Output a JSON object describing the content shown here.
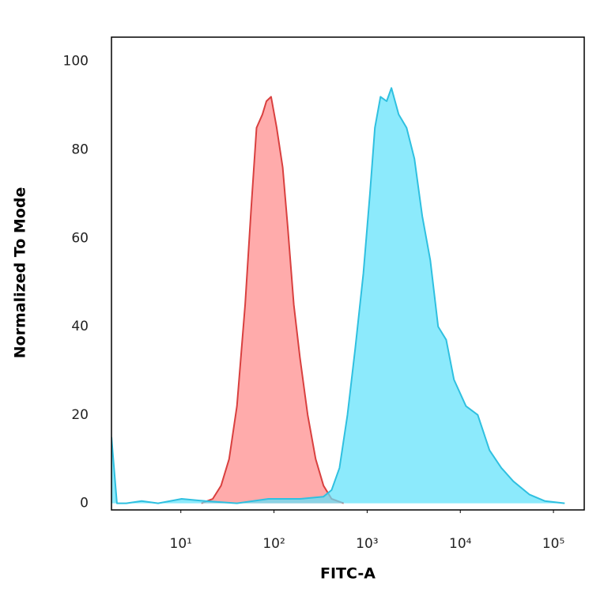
{
  "chart_data": {
    "type": "area",
    "xlabel": "FITC-A",
    "ylabel": "Normalized To Mode",
    "xscale": "log",
    "xlim": [
      1.8,
      214000
    ],
    "ylim": [
      -1.5,
      105.5
    ],
    "xticks": [
      {
        "value": 10,
        "label": "10¹"
      },
      {
        "value": 100,
        "label": "10²"
      },
      {
        "value": 1000,
        "label": "10³"
      },
      {
        "value": 10000,
        "label": "10⁴"
      },
      {
        "value": 100000,
        "label": "10⁵"
      }
    ],
    "yticks": [
      0,
      20,
      40,
      60,
      80,
      100
    ],
    "series": [
      {
        "color": "#d9403f",
        "fill": "#ff8a8a",
        "x": [
          16.6,
          22,
          27,
          33,
          40,
          49,
          57,
          65,
          75,
          83,
          93,
          107,
          124,
          141,
          163,
          190,
          230,
          280,
          340,
          415,
          560
        ],
        "values": [
          0,
          1,
          4,
          10,
          22,
          45,
          67,
          85,
          88,
          91,
          92,
          85,
          76,
          62,
          45,
          33,
          20,
          10,
          4,
          1,
          0
        ]
      },
      {
        "color": "#2fc0e0",
        "fill": "#5fe2fb",
        "x": [
          1.8,
          2.06,
          2.6,
          3.8,
          5.7,
          10.2,
          18.3,
          40,
          87,
          190,
          340,
          415,
          505,
          615,
          745,
          910,
          1070,
          1210,
          1390,
          1620,
          1820,
          2180,
          2650,
          3220,
          3900,
          4760,
          5780,
          7050,
          8550,
          11500,
          15400,
          20600,
          27600,
          37000,
          55000,
          81000,
          132000
        ],
        "values": [
          15,
          0,
          0,
          0.5,
          0,
          1,
          0.5,
          0,
          1,
          1,
          1.5,
          3,
          8,
          20,
          35,
          52,
          70,
          85,
          92,
          91,
          94,
          88,
          85,
          78,
          65,
          55,
          40,
          37,
          28,
          22,
          20,
          12,
          8,
          5,
          2,
          0.5,
          0
        ]
      }
    ]
  }
}
